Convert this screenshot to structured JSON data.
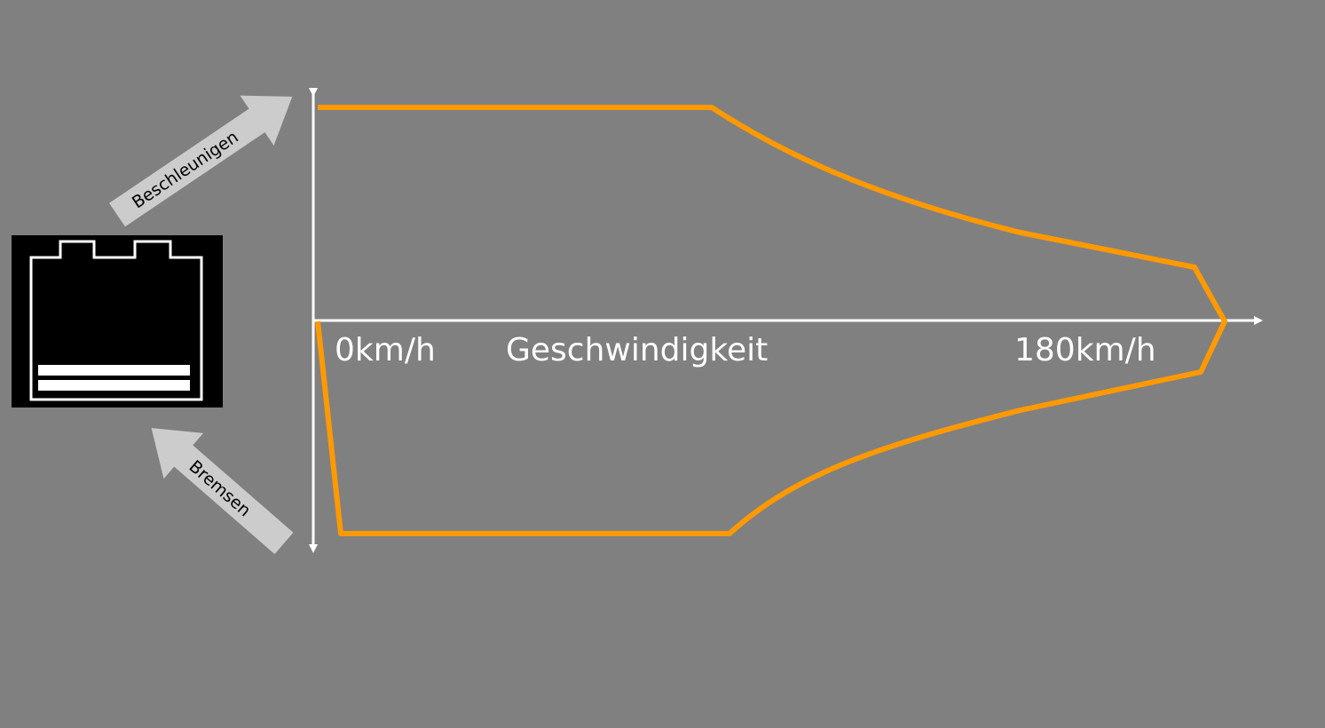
{
  "colors": {
    "background": "#808080",
    "curve": "#ff9900",
    "axes": "#ffffff",
    "arrow_fill": "#cccccc",
    "battery_bg": "#000000",
    "battery_stroke": "#ffffff"
  },
  "battery": {
    "icon": "battery-icon"
  },
  "arrows": {
    "accelerate_label": "Beschleunigen",
    "brake_label": "Bremsen"
  },
  "axis": {
    "start_label": "0km/h",
    "speed_label": "Geschwindigkeit",
    "end_label": "180km/h"
  }
}
